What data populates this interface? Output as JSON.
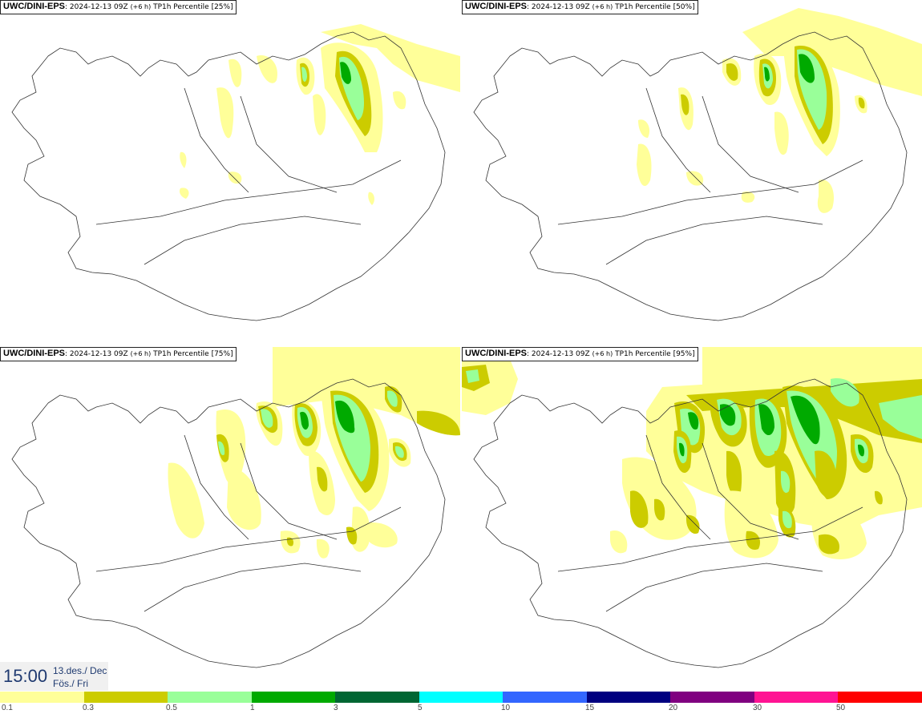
{
  "panels": [
    {
      "model": "UWC/DINI-EPS",
      "rest": ": 2024-12-13 09Z",
      "lead": "(+6 h)",
      "field": "TP1h Percentile [25%]"
    },
    {
      "model": "UWC/DINI-EPS",
      "rest": ": 2024-12-13 09Z",
      "lead": "(+6 h)",
      "field": "TP1h Percentile [50%]"
    },
    {
      "model": "UWC/DINI-EPS",
      "rest": ": 2024-12-13 09Z",
      "lead": "(+6 h)",
      "field": "TP1h Percentile [75%]"
    },
    {
      "model": "UWC/DINI-EPS",
      "rest": ": 2024-12-13 09Z",
      "lead": "(+6 h)",
      "field": "TP1h Percentile [95%]"
    }
  ],
  "valid_time": {
    "time": "15:00",
    "date_line1": "13.des./ Dec",
    "date_line2": "Fös./ Fri"
  },
  "colorbar": {
    "labels": [
      "0.1",
      "0.3",
      "0.5",
      "1",
      "3",
      "5",
      "10",
      "15",
      "20",
      "30",
      "50"
    ],
    "colors": [
      "#ffff99",
      "#cccc00",
      "#99ff99",
      "#00aa00",
      "#006633",
      "#00ffff",
      "#3366ff",
      "#000080",
      "#800080",
      "#ff1493",
      "#ff0000"
    ]
  },
  "map_colors": {
    "coast": "#333333",
    "land": "#ffffff"
  }
}
